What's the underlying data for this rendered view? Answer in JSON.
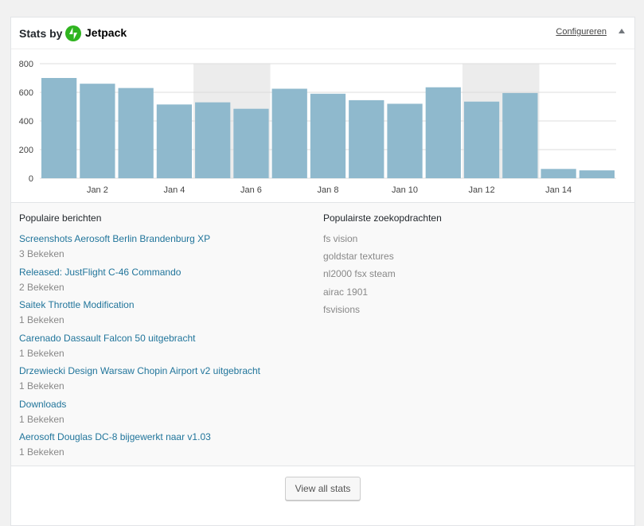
{
  "header": {
    "title": "Stats by",
    "brand": "Jetpack",
    "configure_label": "Configureren",
    "brand_color": "#2fb41f"
  },
  "chart_data": {
    "type": "bar",
    "categories": [
      "Jan 1",
      "Jan 2",
      "Jan 3",
      "Jan 4",
      "Jan 5",
      "Jan 6",
      "Jan 7",
      "Jan 8",
      "Jan 9",
      "Jan 10",
      "Jan 11",
      "Jan 12",
      "Jan 13",
      "Jan 14",
      "Jan 15"
    ],
    "values": [
      700,
      660,
      630,
      515,
      530,
      485,
      625,
      590,
      545,
      520,
      635,
      535,
      595,
      65,
      55
    ],
    "x_tick_labels": [
      "Jan 2",
      "Jan 4",
      "Jan 6",
      "Jan 8",
      "Jan 10",
      "Jan 12",
      "Jan 14"
    ],
    "y_tick_labels": [
      "0",
      "200",
      "400",
      "600",
      "800"
    ],
    "ylim": [
      0,
      800
    ],
    "weekend_highlight": [
      [
        4,
        5
      ],
      [
        11,
        12
      ]
    ],
    "bar_color": "#8fb9cd",
    "weekend_color": "#ececec",
    "grid": true
  },
  "popular_posts": {
    "heading": "Populaire berichten",
    "items": [
      {
        "title": "Screenshots Aerosoft Berlin Brandenburg XP",
        "views": "3 Bekeken"
      },
      {
        "title": "Released: JustFlight C-46 Commando",
        "views": "2 Bekeken"
      },
      {
        "title": "Saitek Throttle Modification",
        "views": "1 Bekeken"
      },
      {
        "title": "Carenado Dassault Falcon 50 uitgebracht",
        "views": "1 Bekeken"
      },
      {
        "title": "Drzewiecki Design Warsaw Chopin Airport v2 uitgebracht",
        "views": "1 Bekeken"
      },
      {
        "title": "Downloads",
        "views": "1 Bekeken"
      },
      {
        "title": "Aerosoft Douglas DC-8 bijgewerkt naar v1.03",
        "views": "1 Bekeken"
      }
    ]
  },
  "popular_searches": {
    "heading": "Populairste zoekopdrachten",
    "items": [
      "fs vision",
      "goldstar textures",
      "nl2000 fsx steam",
      "airac 1901",
      "fsvisions"
    ]
  },
  "footer": {
    "view_all_label": "View all stats"
  }
}
